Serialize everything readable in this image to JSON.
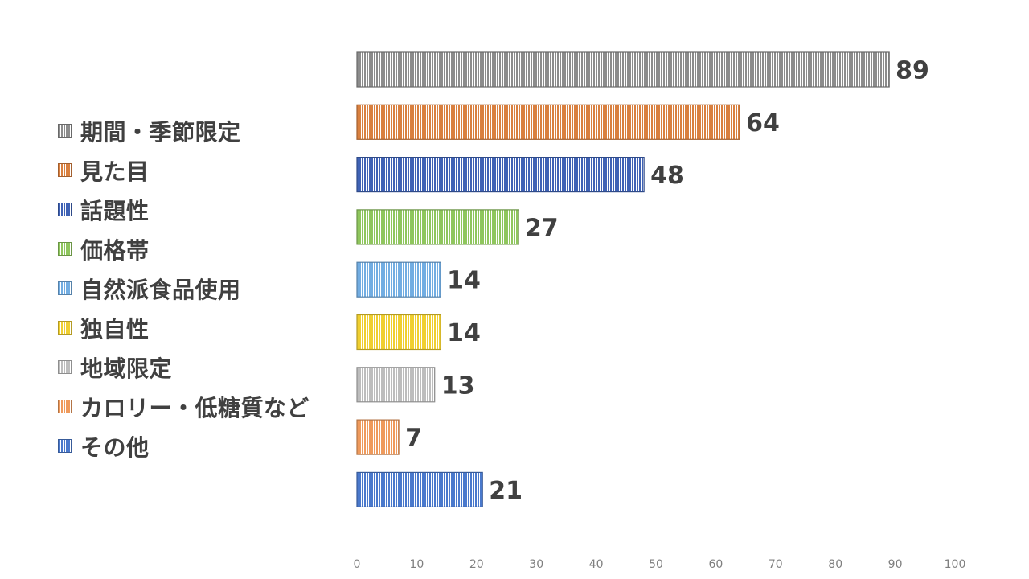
{
  "chart_data": {
    "type": "bar",
    "orientation": "horizontal",
    "categories": [
      "期間・季節限定",
      "見た目",
      "話題性",
      "価格帯",
      "自然派食品使用",
      "独自性",
      "地域限定",
      "カロリー・低糖質など",
      "その他"
    ],
    "values": [
      89,
      64,
      48,
      27,
      14,
      14,
      13,
      7,
      21
    ],
    "colors": [
      "#8c8c8c",
      "#d9803f",
      "#3f62b5",
      "#8fc65d",
      "#72ade2",
      "#f0cf30",
      "#bdbdbd",
      "#ef9a5c",
      "#4a79cc"
    ],
    "xlim": [
      0,
      100
    ],
    "xticks": [
      "0",
      "10",
      "20",
      "30",
      "40",
      "50",
      "60",
      "70",
      "80",
      "90",
      "100"
    ],
    "data_labels": [
      "89",
      "64",
      "48",
      "27",
      "14",
      "14",
      "13",
      "7",
      "21"
    ],
    "legend_position": "left",
    "grid": false,
    "fill_pattern": "vertical-stripes"
  }
}
